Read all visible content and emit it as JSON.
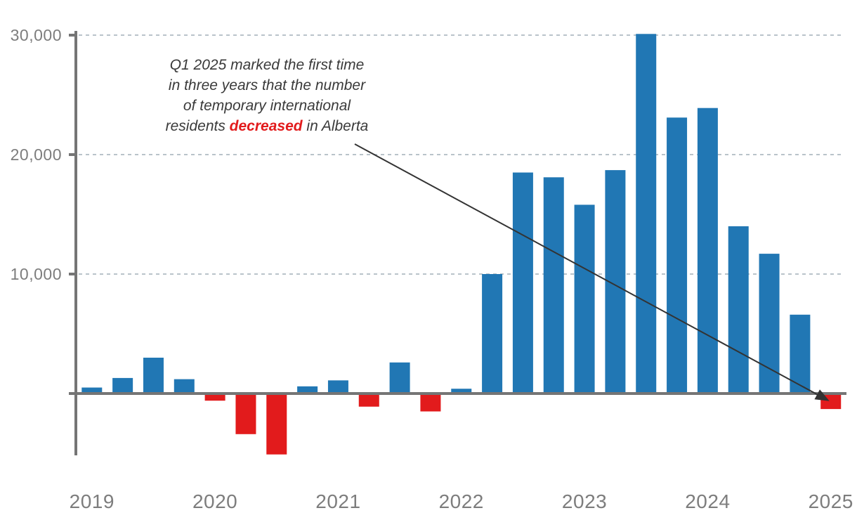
{
  "figure": {
    "colors": {
      "positive_bar": "#2177b4",
      "negative_bar": "#e21b1c",
      "axis": "#757575",
      "gridline": "#b9c3ca",
      "tick_label": "#7d7d7d",
      "annotation_text": "#3a3a3a",
      "annotation_highlight": "#e21b1c",
      "arrow": "#333333"
    }
  },
  "annotation": {
    "line1": "Q1 2025 marked the first time",
    "line2": "in three years that the number",
    "line3": "of temporary international",
    "line4_pre": "residents ",
    "line4_highlight": "decreased",
    "line4_post": " in Alberta"
  },
  "chart_data": {
    "type": "bar",
    "title": "",
    "xlabel": "",
    "ylabel": "",
    "x": [
      "2019 Q1",
      "2019 Q2",
      "2019 Q3",
      "2019 Q4",
      "2020 Q1",
      "2020 Q2",
      "2020 Q3",
      "2020 Q4",
      "2021 Q1",
      "2021 Q2",
      "2021 Q3",
      "2021 Q4",
      "2022 Q1",
      "2022 Q2",
      "2022 Q3",
      "2022 Q4",
      "2023 Q1",
      "2023 Q2",
      "2023 Q3",
      "2023 Q4",
      "2024 Q1",
      "2024 Q2",
      "2024 Q3",
      "2024 Q4",
      "2025 Q1"
    ],
    "values": [
      500,
      1300,
      3000,
      1200,
      -600,
      -3400,
      -5100,
      600,
      1100,
      -1100,
      2600,
      -1500,
      400,
      10000,
      18500,
      18100,
      15800,
      18700,
      30100,
      23100,
      23900,
      14000,
      11700,
      6600,
      -1300
    ],
    "x_tick_labels": [
      "2019",
      "2020",
      "2021",
      "2022",
      "2023",
      "2024",
      "2025"
    ],
    "y_ticks": [
      10000,
      20000,
      30000
    ],
    "y_tick_labels": [
      "10,000",
      "20,000",
      "30,000"
    ],
    "ylim": [
      -5200,
      30400
    ],
    "grid": "horizontal-dashed",
    "legend": "none",
    "color_rule": "positive values blue, negative values red",
    "annotation_arrow": "from annotation text to 2025 Q1 negative bar"
  }
}
